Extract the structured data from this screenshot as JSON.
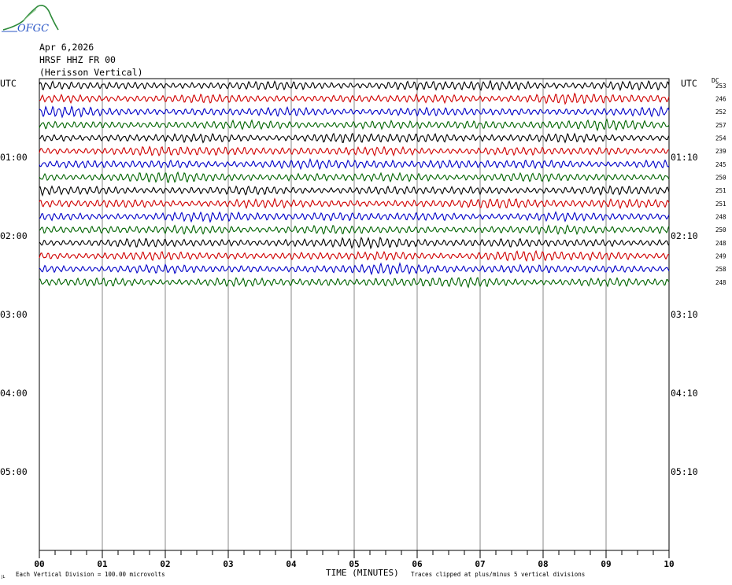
{
  "logo": {
    "text": "OFGC"
  },
  "header": {
    "date": "Apr 6,2026",
    "station": "HRSF HHZ FR 00",
    "description": "(Herisson Vertical)"
  },
  "labels": {
    "utc_left": "UTC",
    "utc_right": "UTC",
    "dc_header": "DC"
  },
  "footer": {
    "scale_note": "Each Vertical Division = 100.00 microvolts",
    "xlabel": "TIME (MINUTES)",
    "clip_note": "Traces clipped at plus/minus 5 vertical divisions"
  },
  "chart_data": {
    "type": "line",
    "title": "",
    "xlabel": "TIME (MINUTES)",
    "xlim": [
      0,
      10
    ],
    "x_ticks": [
      "00",
      "01",
      "02",
      "03",
      "04",
      "05",
      "06",
      "07",
      "08",
      "09",
      "10"
    ],
    "minor_ticks_per_minute": 4,
    "trace_minutes": 10,
    "rows_per_hour": 6,
    "left_time_labels": [
      "01:00",
      "02:00",
      "03:00",
      "04:00",
      "05:00"
    ],
    "right_time_labels": [
      "01:10",
      "02:10",
      "03:10",
      "04:10",
      "05:10"
    ],
    "dc_offsets": [
      253,
      246,
      252,
      257,
      254,
      239,
      245,
      250,
      251,
      251,
      248,
      250,
      248,
      249,
      258,
      248
    ],
    "trace_colors": [
      "#000000",
      "#d00000",
      "#0000c8",
      "#006400"
    ],
    "grid": true,
    "traces_drawn": 16
  }
}
